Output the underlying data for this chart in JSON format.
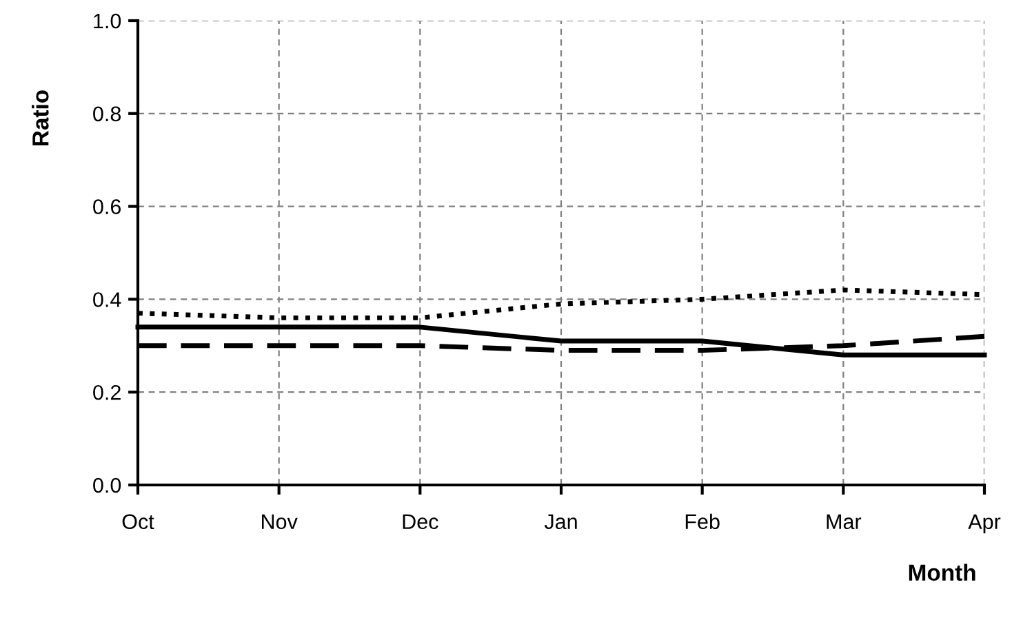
{
  "chart_data": {
    "type": "line",
    "xlabel": "Month",
    "ylabel": "Ratio",
    "categories": [
      "Oct",
      "Nov",
      "Dec",
      "Jan",
      "Feb",
      "Mar",
      "Apr"
    ],
    "series": [
      {
        "color": "#000000",
        "line_style": "solid",
        "values": [
          0.34,
          0.34,
          0.34,
          0.31,
          0.31,
          0.28,
          0.28
        ]
      },
      {
        "color": "#000000",
        "line_style": "dashed",
        "values": [
          0.3,
          0.3,
          0.3,
          0.29,
          0.29,
          0.3,
          0.32
        ]
      },
      {
        "color": "#000000",
        "line_style": "dotted",
        "values": [
          0.37,
          0.36,
          0.36,
          0.39,
          0.4,
          0.42,
          0.41
        ]
      }
    ],
    "ylim": [
      0,
      1
    ],
    "yticks": [
      {
        "value": 0,
        "label": "0.0"
      },
      {
        "value": 0.2,
        "label": "0.2"
      },
      {
        "value": 0.4,
        "label": "0.4"
      },
      {
        "value": 0.6,
        "label": "0.6"
      },
      {
        "value": 0.8,
        "label": "0.8"
      },
      {
        "value": 1,
        "label": "1.0"
      }
    ],
    "grid": true,
    "marker": "none"
  }
}
